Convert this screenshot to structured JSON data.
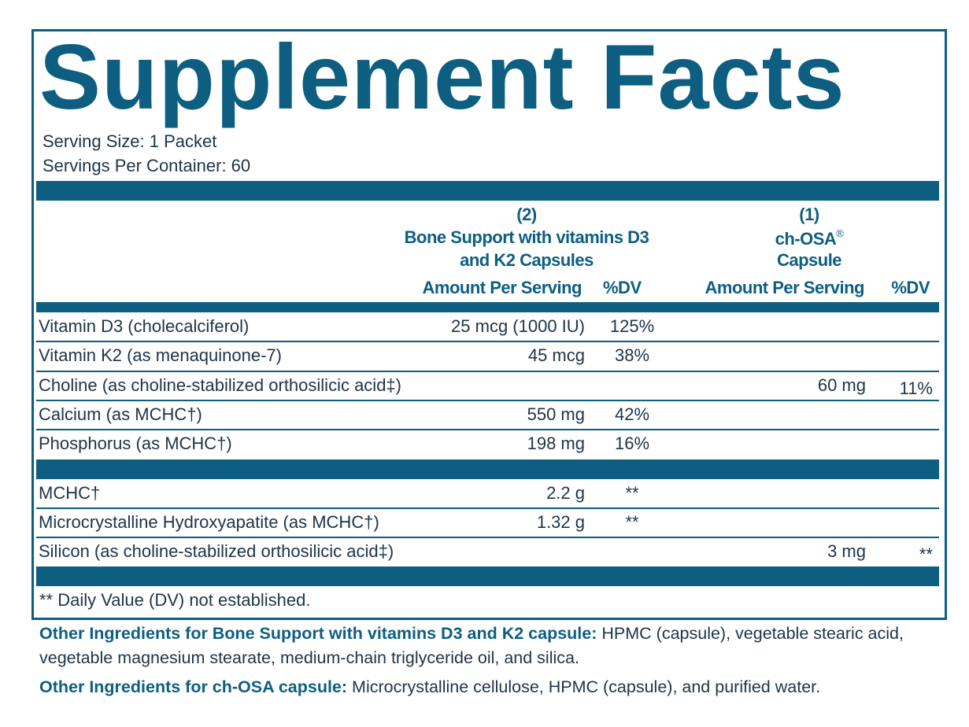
{
  "header": {
    "title": "Supplement Facts",
    "serving_size": "Serving Size: 1 Packet",
    "servings_per_container": "Servings Per Container: 60"
  },
  "columns": [
    {
      "count": "(2)",
      "name_lines": [
        "Bone Support with vitamins D3",
        "and K2 Capsules"
      ],
      "amount_heading": "Amount Per Serving",
      "dv_heading": "%DV"
    },
    {
      "count": "(1)",
      "name_lines": [
        "ch-OSA",
        "Capsule"
      ],
      "mark": "®",
      "amount_heading": "Amount Per Serving",
      "dv_heading": "%DV"
    }
  ],
  "groups": [
    {
      "rows": [
        {
          "name": "Vitamin D3 (cholecalciferol)",
          "amount_1": "25 mcg (1000 IU)",
          "dv_1": "125%"
        },
        {
          "name": "Vitamin K2 (as menaquinone-7)",
          "amount_1": "45 mcg",
          "dv_1": "38%"
        },
        {
          "name": "Choline (as choline-stabilized orthosilicic acid‡)",
          "amount_2": "60 mg",
          "dv_2": "11%"
        },
        {
          "name": "Calcium (as MCHC†)",
          "amount_1": "550 mg",
          "dv_1": "42%"
        },
        {
          "name": "Phosphorus (as MCHC†)",
          "amount_1": "198 mg",
          "dv_1": "16%"
        }
      ]
    },
    {
      "rows": [
        {
          "name": "MCHC†",
          "amount_1": "2.2 g",
          "dv_1": "**"
        },
        {
          "name": "Microcrystalline Hydroxyapatite (as MCHC†)",
          "amount_1": "1.32 g",
          "dv_1": "**"
        },
        {
          "name": "Silicon (as choline-stabilized orthosilicic acid‡)",
          "amount_2": "3 mg",
          "dv_2": "**"
        }
      ]
    }
  ],
  "footnote": "** Daily Value (DV) not established.",
  "other_ingredients": [
    {
      "label": "Other Ingredients for Bone Support with vitamins D3 and K2 capsule:",
      "text": "HPMC (capsule), vegetable stearic acid, vegetable magnesium stearate, medium-chain triglyceride oil, and silica."
    },
    {
      "label": "Other Ingredients for ch-OSA capsule:",
      "text": "Microcrystalline cellulose, HPMC (capsule), and purified water."
    }
  ]
}
